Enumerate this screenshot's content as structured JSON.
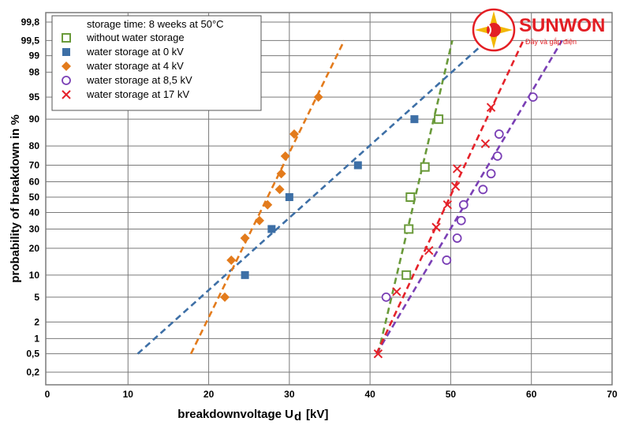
{
  "chart_data": {
    "type": "scatter",
    "xlabel_main": "breakdownvoltage U",
    "xlabel_sub": "d",
    "xlabel_unit": "[kV]",
    "ylabel": "probability of breakdown  in %",
    "xlim": [
      0,
      70
    ],
    "x_ticks": [
      "0",
      "10",
      "20",
      "30",
      "40",
      "50",
      "60",
      "70"
    ],
    "y_scale": "normal-probability",
    "y_ticks": [
      {
        "value": 0.2,
        "label": "0,2"
      },
      {
        "value": 0.5,
        "label": "0,5"
      },
      {
        "value": 1,
        "label": "1"
      },
      {
        "value": 2,
        "label": "2"
      },
      {
        "value": 5,
        "label": "5"
      },
      {
        "value": 10,
        "label": "10"
      },
      {
        "value": 20,
        "label": "20"
      },
      {
        "value": 30,
        "label": "30"
      },
      {
        "value": 40,
        "label": "40"
      },
      {
        "value": 50,
        "label": "50"
      },
      {
        "value": 60,
        "label": "60"
      },
      {
        "value": 70,
        "label": "70"
      },
      {
        "value": 80,
        "label": "80"
      },
      {
        "value": 90,
        "label": "90"
      },
      {
        "value": 95,
        "label": "95"
      },
      {
        "value": 98,
        "label": "98"
      },
      {
        "value": 99,
        "label": "99"
      },
      {
        "value": 99.5,
        "label": "99,5"
      },
      {
        "value": 99.8,
        "label": "99,8"
      }
    ],
    "grid": true,
    "legend_title": "storage time:  8 weeks at 50°C",
    "legend_position": "top-left",
    "series": [
      {
        "name": "without water storage",
        "marker": "open-square",
        "color": "#6a9a3a",
        "points": [
          [
            44.5,
            10
          ],
          [
            44.8,
            30
          ],
          [
            45,
            50
          ],
          [
            46.8,
            69
          ],
          [
            48.5,
            90
          ]
        ],
        "fit": [
          [
            41,
            0.5
          ],
          [
            50.2,
            99.5
          ]
        ]
      },
      {
        "name": "water storage at 0 kV",
        "marker": "filled-square",
        "color": "#3d6fa6",
        "points": [
          [
            24.5,
            10
          ],
          [
            27.8,
            30
          ],
          [
            30,
            50
          ],
          [
            38.5,
            70
          ],
          [
            45.5,
            90
          ]
        ],
        "fit": [
          [
            11.2,
            0.5
          ],
          [
            54.5,
            99.5
          ]
        ]
      },
      {
        "name": "water storage at 4 kV",
        "marker": "filled-diamond",
        "color": "#e37b1c",
        "points": [
          [
            22,
            5
          ],
          [
            22.8,
            15
          ],
          [
            24.5,
            25
          ],
          [
            26.3,
            35
          ],
          [
            27.3,
            45
          ],
          [
            28.8,
            55
          ],
          [
            29,
            65
          ],
          [
            29.5,
            75
          ],
          [
            30.6,
            85
          ],
          [
            33.6,
            95
          ]
        ],
        "fit": [
          [
            17.8,
            0.5
          ],
          [
            36.8,
            99.5
          ]
        ]
      },
      {
        "name": "water storage at 8,5 kV",
        "marker": "open-circle",
        "color": "#7a3fb5",
        "points": [
          [
            42,
            5
          ],
          [
            49.5,
            15
          ],
          [
            50.8,
            25
          ],
          [
            51.3,
            35
          ],
          [
            51.6,
            45
          ],
          [
            54,
            55
          ],
          [
            55,
            65
          ],
          [
            55.8,
            75
          ],
          [
            56,
            85
          ],
          [
            60.2,
            95
          ]
        ],
        "fit": [
          [
            40.8,
            0.5
          ],
          [
            63.8,
            99.5
          ]
        ]
      },
      {
        "name": "water storage at 17 kV",
        "marker": "x",
        "color": "#e5222a",
        "points": [
          [
            41,
            0.5
          ],
          [
            43.3,
            6
          ],
          [
            47.3,
            19
          ],
          [
            48.2,
            31
          ],
          [
            49.6,
            45
          ],
          [
            50.6,
            57
          ],
          [
            50.8,
            68
          ],
          [
            54.3,
            81
          ],
          [
            55,
            93
          ]
        ],
        "fit": [
          [
            40.8,
            0.5
          ],
          [
            59,
            99.5
          ]
        ]
      }
    ]
  },
  "logo": {
    "name": "SUNWON",
    "tagline": "Đầy và gắp điện"
  },
  "colors": {
    "grid": "#7a7a7a",
    "frame": "#7a7a7a",
    "logo_red": "#e31e24",
    "logo_gold": "#f2b705"
  }
}
